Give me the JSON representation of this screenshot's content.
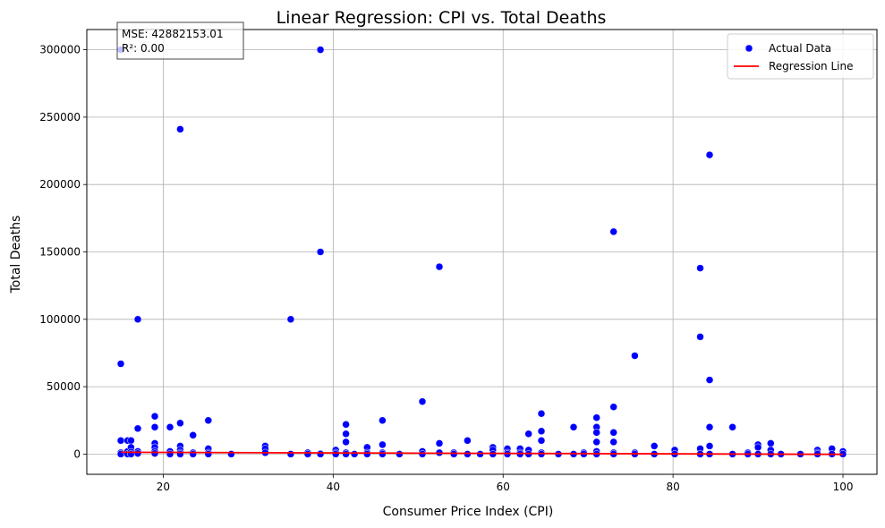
{
  "chart_data": {
    "type": "scatter",
    "title": "Linear Regression: CPI vs. Total Deaths",
    "xlabel": "Consumer Price Index (CPI)",
    "ylabel": "Total Deaths",
    "xlim": [
      11,
      104
    ],
    "ylim": [
      -15000,
      315000
    ],
    "xticks": [
      20,
      40,
      60,
      80,
      100
    ],
    "yticks": [
      0,
      50000,
      100000,
      150000,
      200000,
      250000,
      300000
    ],
    "grid": true,
    "legend_position": "top-right",
    "colors": {
      "points": "#0000ff",
      "regression": "#ff0000",
      "frame": "#000000",
      "grid": "#b0b0b0"
    },
    "stats": {
      "mse": "MSE: 42882153.01",
      "r2": "R²: 0.00"
    },
    "series": [
      {
        "name": "Actual Data",
        "kind": "scatter",
        "points": [
          [
            15,
            300000
          ],
          [
            15,
            67000
          ],
          [
            15,
            10000
          ],
          [
            15,
            1000
          ],
          [
            15,
            0
          ],
          [
            15.8,
            10000
          ],
          [
            15.8,
            2000
          ],
          [
            15.8,
            0
          ],
          [
            16.2,
            10000
          ],
          [
            16.2,
            5000
          ],
          [
            16.2,
            1500
          ],
          [
            16.2,
            0
          ],
          [
            17,
            100000
          ],
          [
            17,
            19000
          ],
          [
            17,
            2000
          ],
          [
            17,
            500
          ],
          [
            19,
            28000
          ],
          [
            19,
            20000
          ],
          [
            19,
            8000
          ],
          [
            19,
            5000
          ],
          [
            19,
            2000
          ],
          [
            19,
            500
          ],
          [
            20.8,
            20000
          ],
          [
            20.8,
            2000
          ],
          [
            20.8,
            0
          ],
          [
            22,
            241000
          ],
          [
            22,
            23000
          ],
          [
            22,
            6000
          ],
          [
            22,
            3000
          ],
          [
            22,
            1000
          ],
          [
            22,
            0
          ],
          [
            23.5,
            14000
          ],
          [
            23.5,
            1000
          ],
          [
            23.5,
            0
          ],
          [
            25.3,
            25000
          ],
          [
            25.3,
            4000
          ],
          [
            25.3,
            1000
          ],
          [
            25.3,
            0
          ],
          [
            28,
            0
          ],
          [
            32,
            6000
          ],
          [
            32,
            4000
          ],
          [
            32,
            1000
          ],
          [
            35,
            100000
          ],
          [
            35,
            0
          ],
          [
            37,
            1000
          ],
          [
            37,
            0
          ],
          [
            38.5,
            300000
          ],
          [
            38.5,
            150000
          ],
          [
            38.5,
            500
          ],
          [
            38.5,
            0
          ],
          [
            40.3,
            3000
          ],
          [
            40.3,
            1000
          ],
          [
            40.3,
            0
          ],
          [
            41.5,
            22000
          ],
          [
            41.5,
            15000
          ],
          [
            41.5,
            9000
          ],
          [
            41.5,
            1000
          ],
          [
            41.5,
            0
          ],
          [
            42.5,
            0
          ],
          [
            44,
            5000
          ],
          [
            44,
            1000
          ],
          [
            44,
            0
          ],
          [
            45.8,
            25000
          ],
          [
            45.8,
            7000
          ],
          [
            45.8,
            1000
          ],
          [
            45.8,
            0
          ],
          [
            47.8,
            0
          ],
          [
            50.5,
            39000
          ],
          [
            50.5,
            2000
          ],
          [
            50.5,
            0
          ],
          [
            52.5,
            139000
          ],
          [
            52.5,
            8000
          ],
          [
            52.5,
            1000
          ],
          [
            54.2,
            1000
          ],
          [
            54.2,
            0
          ],
          [
            55.8,
            10000
          ],
          [
            55.8,
            0
          ],
          [
            57.3,
            0
          ],
          [
            58.8,
            5000
          ],
          [
            58.8,
            3000
          ],
          [
            58.8,
            0
          ],
          [
            60.5,
            4000
          ],
          [
            60.5,
            1000
          ],
          [
            60.5,
            0
          ],
          [
            62,
            4000
          ],
          [
            62,
            1000
          ],
          [
            62,
            0
          ],
          [
            63,
            15000
          ],
          [
            63,
            3000
          ],
          [
            63,
            0
          ],
          [
            64.5,
            30000
          ],
          [
            64.5,
            17000
          ],
          [
            64.5,
            10000
          ],
          [
            64.5,
            1000
          ],
          [
            64.5,
            0
          ],
          [
            66.5,
            0
          ],
          [
            68.3,
            20000
          ],
          [
            68.3,
            0
          ],
          [
            69.5,
            1000
          ],
          [
            69.5,
            0
          ],
          [
            71,
            27000
          ],
          [
            71,
            20000
          ],
          [
            71,
            16000
          ],
          [
            71,
            9000
          ],
          [
            71,
            2000
          ],
          [
            71,
            0
          ],
          [
            73,
            165000
          ],
          [
            73,
            35000
          ],
          [
            73,
            16000
          ],
          [
            73,
            9000
          ],
          [
            73,
            1000
          ],
          [
            73,
            0
          ],
          [
            75.5,
            73000
          ],
          [
            75.5,
            1000
          ],
          [
            75.5,
            0
          ],
          [
            77.8,
            6000
          ],
          [
            77.8,
            0
          ],
          [
            80.2,
            3000
          ],
          [
            80.2,
            0
          ],
          [
            83.2,
            138000
          ],
          [
            83.2,
            87000
          ],
          [
            83.2,
            4000
          ],
          [
            83.2,
            0
          ],
          [
            84.3,
            222000
          ],
          [
            84.3,
            55000
          ],
          [
            84.3,
            20000
          ],
          [
            84.3,
            6000
          ],
          [
            84.3,
            0
          ],
          [
            87,
            20000
          ],
          [
            87,
            0
          ],
          [
            88.8,
            1000
          ],
          [
            88.8,
            0
          ],
          [
            90,
            7000
          ],
          [
            90,
            5000
          ],
          [
            90,
            0
          ],
          [
            91.5,
            8000
          ],
          [
            91.5,
            3000
          ],
          [
            91.5,
            0
          ],
          [
            92.7,
            0
          ],
          [
            95,
            0
          ],
          [
            97,
            3000
          ],
          [
            97,
            1000
          ],
          [
            97,
            0
          ],
          [
            98.7,
            4000
          ],
          [
            98.7,
            0
          ],
          [
            100,
            2000
          ],
          [
            100,
            0
          ]
        ]
      },
      {
        "name": "Regression Line",
        "kind": "line",
        "points": [
          [
            15,
            1350
          ],
          [
            100,
            -200
          ]
        ]
      }
    ]
  }
}
